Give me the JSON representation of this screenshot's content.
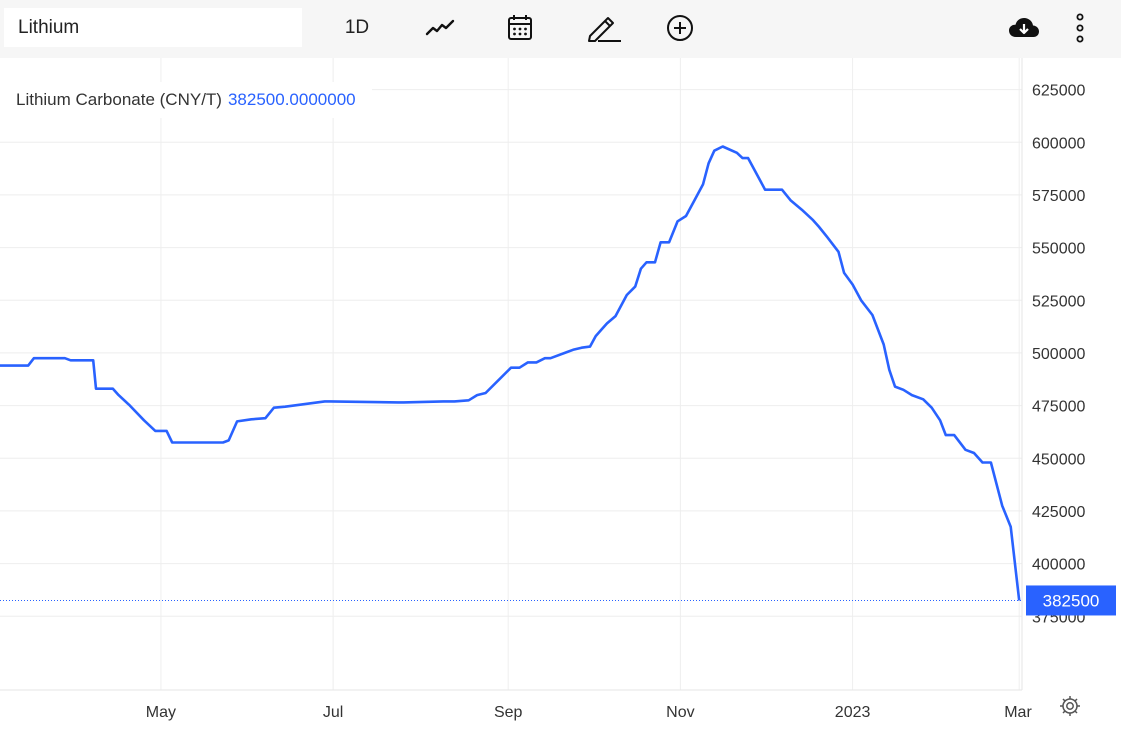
{
  "toolbar": {
    "symbol_value": "Lithium",
    "interval_label": "1D",
    "icons": [
      "line-chart-icon",
      "calendar-icon",
      "pencil-icon",
      "plus-circle-icon",
      "download-icon",
      "more-vert-icon",
      "settings-icon"
    ]
  },
  "legend": {
    "series_name": "Lithium Carbonate (CNY/T)",
    "series_value": "382500.0000000"
  },
  "colors": {
    "line": "#2962ff",
    "toolbar_bg": "#f6f6f6",
    "grid": "#eeeeee",
    "axis_text": "#333333"
  },
  "chart_data": {
    "type": "line",
    "x_unit": "date",
    "xlim": [
      "2022-03-05",
      "2023-03-02"
    ],
    "ylim": [
      340000,
      640000
    ],
    "grid": true,
    "y_ticks": [
      375000,
      400000,
      425000,
      450000,
      475000,
      500000,
      525000,
      550000,
      575000,
      600000,
      625000
    ],
    "y_tick_labels": [
      "375000",
      "400000",
      "425000",
      "450000",
      "475000",
      "500000",
      "525000",
      "550000",
      "575000",
      "600000",
      "625000"
    ],
    "x_ticks": [
      {
        "date": "2022-05-01",
        "label": "May"
      },
      {
        "date": "2022-07-01",
        "label": "Jul"
      },
      {
        "date": "2022-09-01",
        "label": "Sep"
      },
      {
        "date": "2022-11-01",
        "label": "Nov"
      },
      {
        "date": "2023-01-01",
        "label": "2023"
      },
      {
        "date": "2023-03-01",
        "label": "Mar"
      }
    ],
    "last_value": 382500,
    "last_value_label": "382500",
    "series": [
      {
        "x": [
          "2022-03-05",
          "2022-03-15",
          "2022-03-17",
          "2022-03-28",
          "2022-03-30",
          "2022-04-07",
          "2022-04-08",
          "2022-04-14",
          "2022-04-16",
          "2022-04-20",
          "2022-04-25",
          "2022-04-29",
          "2022-05-03",
          "2022-05-05",
          "2022-05-23",
          "2022-05-25",
          "2022-05-28",
          "2022-06-02",
          "2022-06-07",
          "2022-06-10",
          "2022-06-14",
          "2022-06-28",
          "2022-06-30",
          "2022-07-24",
          "2022-07-26",
          "2022-08-09",
          "2022-08-13",
          "2022-08-18",
          "2022-08-21",
          "2022-08-24",
          "2022-09-02",
          "2022-09-05",
          "2022-09-08",
          "2022-09-11",
          "2022-09-14",
          "2022-09-16",
          "2022-09-22",
          "2022-09-24",
          "2022-09-27",
          "2022-09-30",
          "2022-10-02",
          "2022-10-04",
          "2022-10-06",
          "2022-10-09",
          "2022-10-13",
          "2022-10-16",
          "2022-10-18",
          "2022-10-20",
          "2022-10-23",
          "2022-10-25",
          "2022-10-28",
          "2022-10-31",
          "2022-11-03",
          "2022-11-06",
          "2022-11-09",
          "2022-11-11",
          "2022-11-13",
          "2022-11-16",
          "2022-11-21",
          "2022-11-23",
          "2022-11-25",
          "2022-12-01",
          "2022-12-05",
          "2022-12-07",
          "2022-12-10",
          "2022-12-14",
          "2022-12-18",
          "2022-12-20",
          "2022-12-23",
          "2022-12-27",
          "2022-12-29",
          "2023-01-01",
          "2023-01-04",
          "2023-01-08",
          "2023-01-12",
          "2023-01-14",
          "2023-01-16",
          "2023-01-19",
          "2023-01-22",
          "2023-01-26",
          "2023-01-29",
          "2023-02-01",
          "2023-02-03",
          "2023-02-06",
          "2023-02-10",
          "2023-02-13",
          "2023-02-16",
          "2023-02-19",
          "2023-02-23",
          "2023-02-26",
          "2023-03-01"
        ],
        "values": [
          494000,
          494000,
          497500,
          497500,
          496500,
          496500,
          483000,
          483000,
          480000,
          475000,
          468000,
          463000,
          463000,
          457500,
          457500,
          458500,
          467500,
          468500,
          469000,
          474000,
          474500,
          477000,
          477000,
          476500,
          476500,
          477000,
          477000,
          477500,
          480000,
          481000,
          493000,
          493000,
          495500,
          495500,
          497500,
          497500,
          500500,
          501500,
          502500,
          503000,
          508000,
          511000,
          514000,
          517500,
          527500,
          531500,
          540000,
          543000,
          543000,
          552500,
          552500,
          562500,
          565000,
          572500,
          580000,
          590000,
          596000,
          598000,
          595000,
          592500,
          592500,
          577500,
          577500,
          577500,
          572500,
          568000,
          563000,
          560000,
          555000,
          548000,
          538000,
          532500,
          525000,
          518000,
          504000,
          492000,
          484000,
          482500,
          480000,
          478000,
          474000,
          468000,
          461000,
          461000,
          454000,
          452500,
          448000,
          448000,
          427500,
          417500,
          382500
        ]
      }
    ]
  }
}
